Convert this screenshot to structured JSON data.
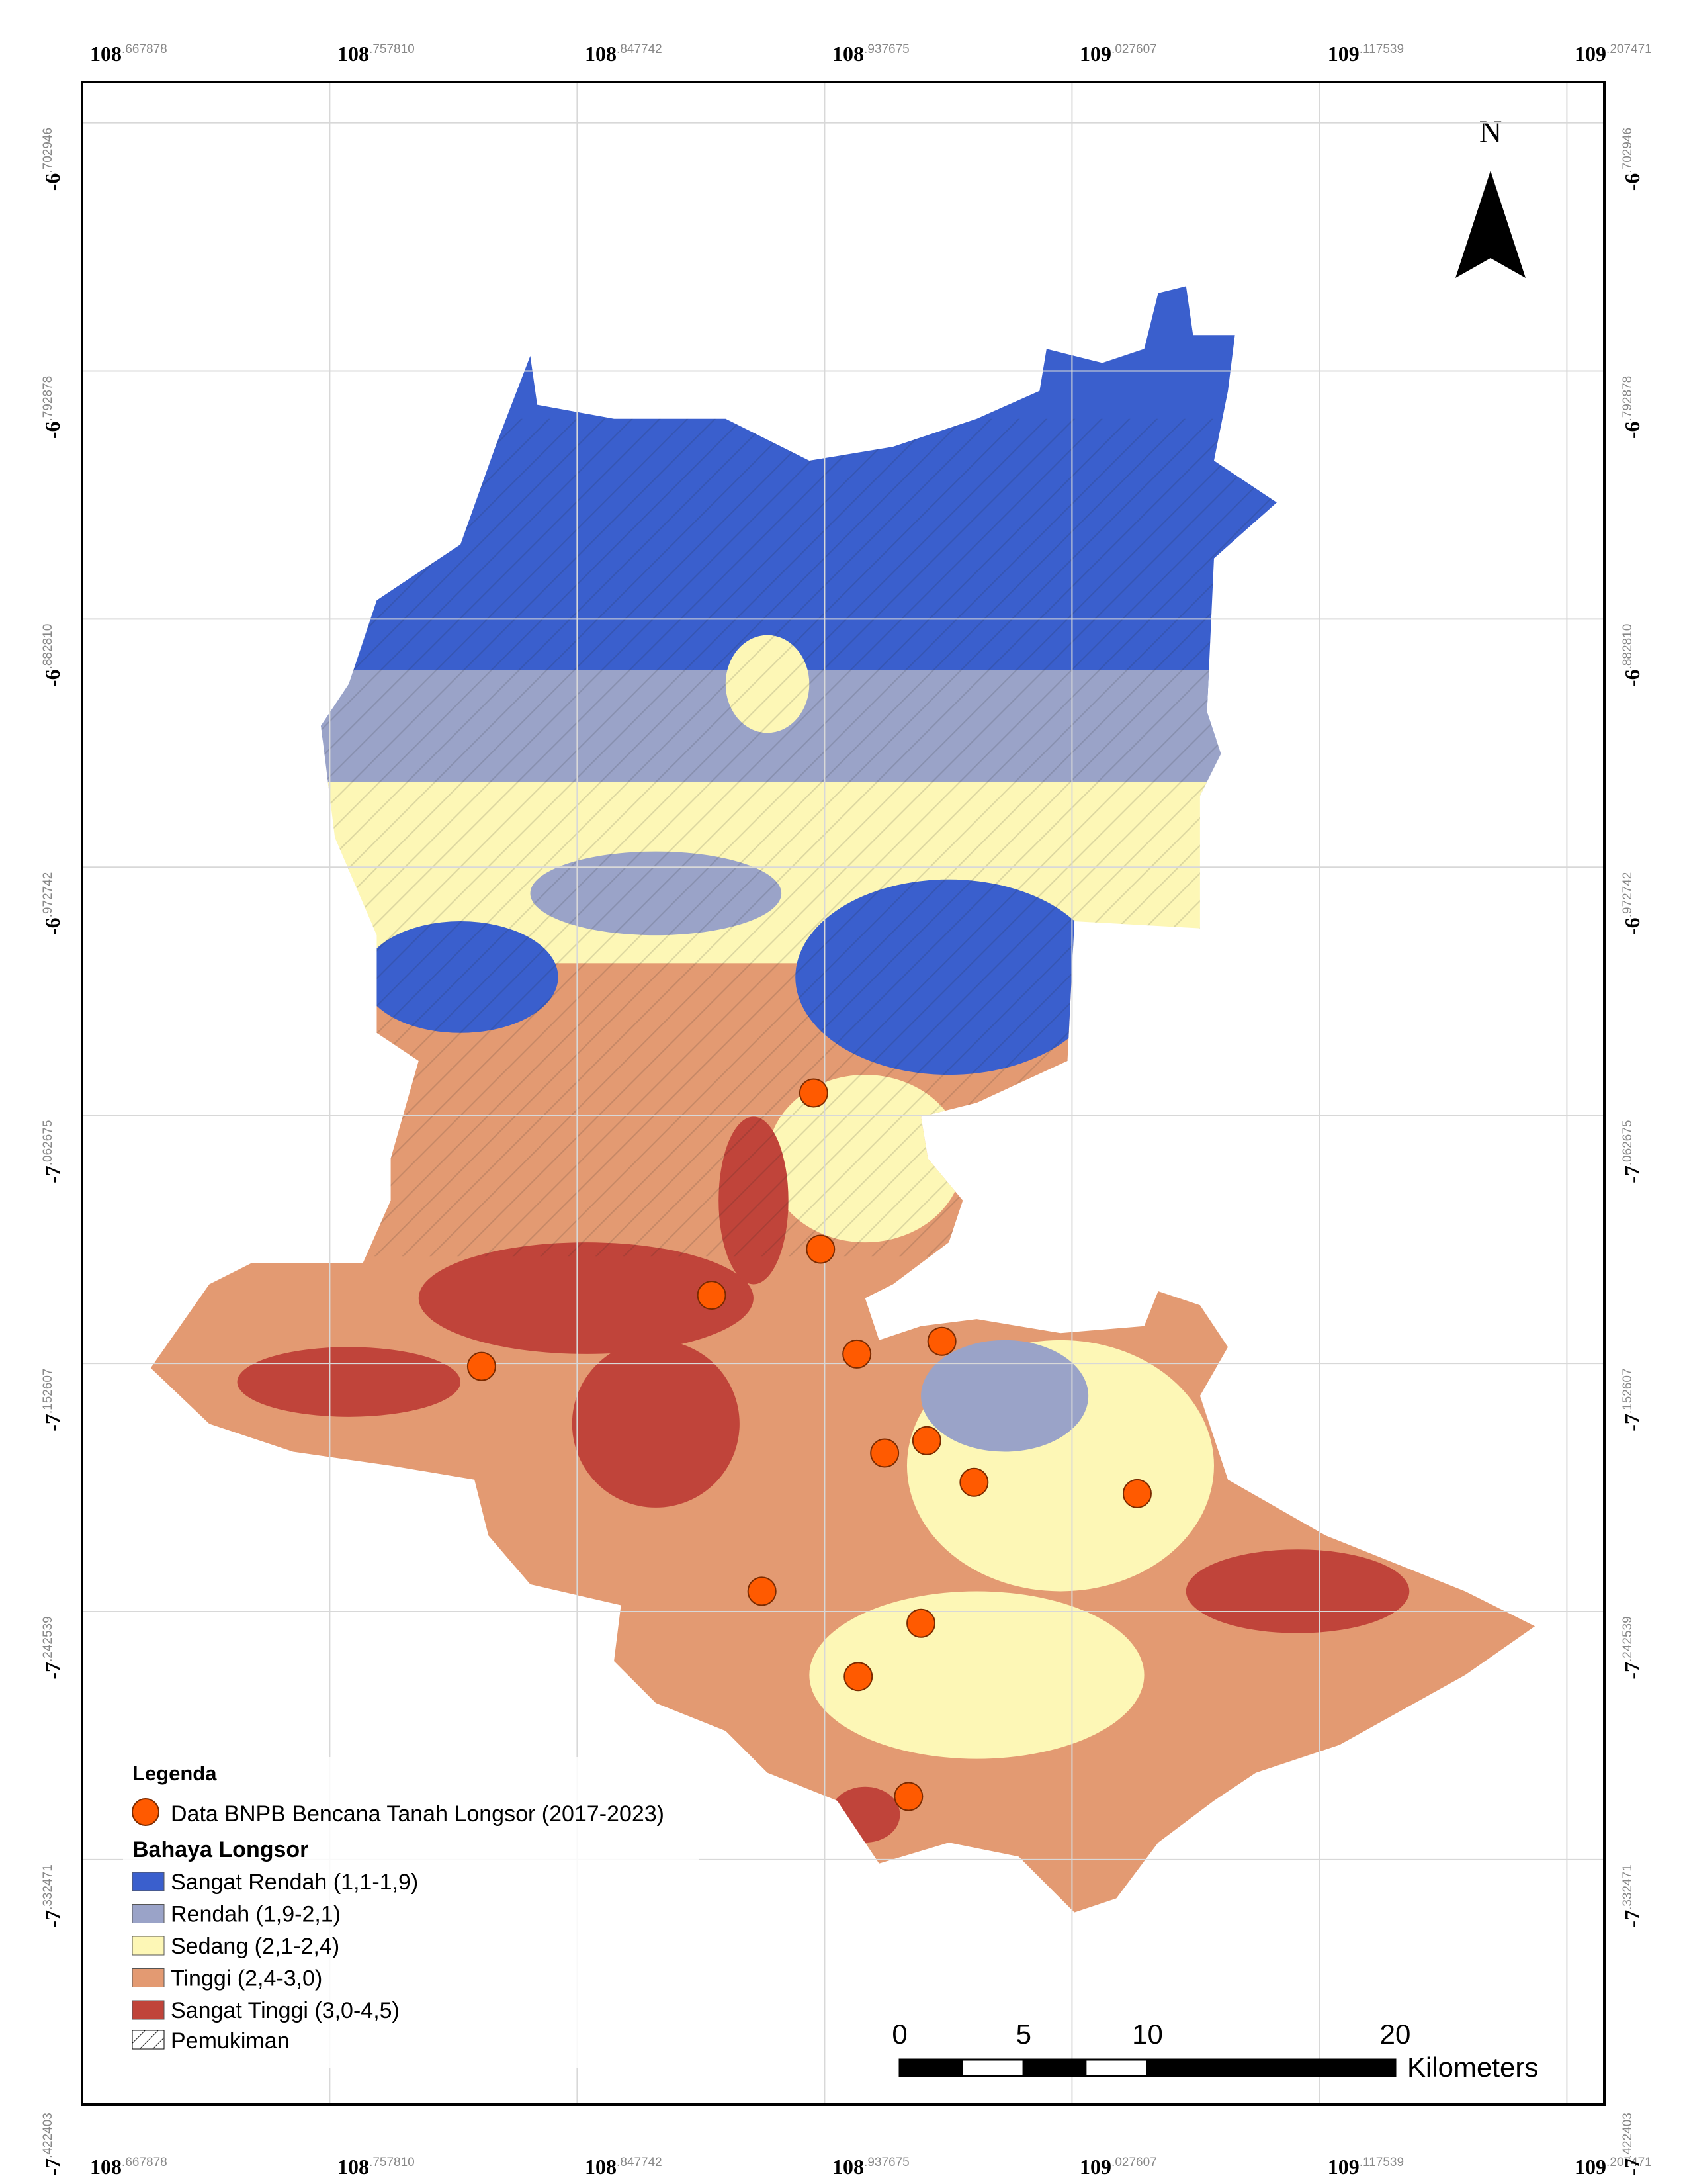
{
  "map": {
    "lon_ticks": [
      {
        "value": 108.667878,
        "major": "108",
        "minor": ".667878"
      },
      {
        "value": 108.75781,
        "major": "108",
        "minor": ".757810"
      },
      {
        "value": 108.847742,
        "major": "108",
        "minor": ".847742"
      },
      {
        "value": 108.937675,
        "major": "108",
        "minor": ".937675"
      },
      {
        "value": 109.027607,
        "major": "109",
        "minor": ".027607"
      },
      {
        "value": 109.117539,
        "major": "109",
        "minor": ".117539"
      },
      {
        "value": 109.207471,
        "major": "109",
        "minor": ".207471"
      }
    ],
    "lat_ticks": [
      {
        "value": -6.702946,
        "major": "-6",
        "minor": ".702946"
      },
      {
        "value": -6.792878,
        "major": "-6",
        "minor": ".792878"
      },
      {
        "value": -6.88281,
        "major": "-6",
        "minor": ".882810"
      },
      {
        "value": -6.972742,
        "major": "-6",
        "minor": ".972742"
      },
      {
        "value": -7.062675,
        "major": "-7",
        "minor": ".062675"
      },
      {
        "value": -7.152607,
        "major": "-7",
        "minor": ".152607"
      },
      {
        "value": -7.242539,
        "major": "-7",
        "minor": ".242539"
      },
      {
        "value": -7.332471,
        "major": "-7",
        "minor": ".332471"
      },
      {
        "value": -7.422403,
        "major": "-7",
        "minor": ".422403"
      }
    ],
    "north": "N",
    "legend": {
      "title": "Legenda",
      "point_label": "Data BNPB Bencana Tanah Longsor (2017-2023)",
      "point_color": "#ff5a00",
      "class_title": "Bahaya Longsor",
      "classes": [
        {
          "label": "Sangat Rendah (1,1-1,9)",
          "color": "#3a5fcd"
        },
        {
          "label": "Rendah (1,9-2,1)",
          "color": "#9aa3c8"
        },
        {
          "label": "Sedang (2,1-2,4)",
          "color": "#fdf7b6"
        },
        {
          "label": "Tinggi (2,4-3,0)",
          "color": "#e39a72"
        },
        {
          "label": "Sangat Tinggi (3,0-4,5)",
          "color": "#c0443a"
        }
      ],
      "settlement": "Pemukiman"
    },
    "points": [
      {
        "lon": 108.9337,
        "lat": -7.0546
      },
      {
        "lon": 108.9362,
        "lat": -7.1112
      },
      {
        "lon": 108.8966,
        "lat": -7.1279
      },
      {
        "lon": 108.813,
        "lat": -7.1537
      },
      {
        "lon": 108.9494,
        "lat": -7.1492
      },
      {
        "lon": 108.9803,
        "lat": -7.1446
      },
      {
        "lon": 108.9595,
        "lat": -7.1851
      },
      {
        "lon": 108.9748,
        "lat": -7.1806
      },
      {
        "lon": 108.992,
        "lat": -7.1957
      },
      {
        "lon": 109.0513,
        "lat": -7.1998
      },
      {
        "lon": 108.9149,
        "lat": -7.2352
      },
      {
        "lon": 108.9727,
        "lat": -7.2468
      },
      {
        "lon": 108.9499,
        "lat": -7.2661
      },
      {
        "lon": 108.9682,
        "lat": -7.3096
      }
    ],
    "scale_bar": {
      "ticks": [
        0,
        5,
        10,
        20
      ],
      "unit": "Kilometers"
    }
  }
}
